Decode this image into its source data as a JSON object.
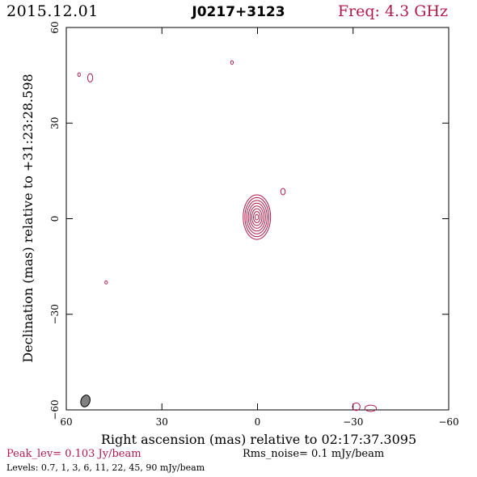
{
  "header": {
    "date": "2015.12.01",
    "source": "J0217+3123",
    "frequency": "Freq: 4.3 GHz"
  },
  "footer": {
    "peak": "Peak_lev=  0.103 Jy/beam",
    "rms": "Rms_noise=  0.1 mJy/beam",
    "levels": "Levels: 0.7,   1,   3,   6,  11,  22,  45,  90 mJy/beam"
  },
  "colors": {
    "contour": "#b01b4a",
    "beam": "#808080",
    "frame": "#000000"
  },
  "chart_data": {
    "type": "contour",
    "xlabel": "Right ascension (mas) relative to 02:17:37.3095",
    "ylabel": "Declination (mas) relative to +31:23:28.598",
    "xlim": [
      60,
      -60
    ],
    "ylim": [
      -60,
      60
    ],
    "xticks": [
      60,
      30,
      0,
      -30,
      -60
    ],
    "yticks": [
      60,
      30,
      0,
      -30,
      -60
    ],
    "contour_levels_mJy": [
      0.7,
      1,
      3,
      6,
      11,
      22,
      45,
      90
    ],
    "components": [
      {
        "x": 0.2,
        "y": 0.5,
        "rx_outer": 4.3,
        "ry_outer": 7.0,
        "levels": 8
      },
      {
        "x": -8.0,
        "y": 8.5,
        "rx_outer": 0.7,
        "ry_outer": 1.0,
        "levels": 1
      },
      {
        "x": 8.0,
        "y": 49.0,
        "rx_outer": 0.4,
        "ry_outer": 0.6,
        "levels": 1
      },
      {
        "x": 52.5,
        "y": 44.2,
        "rx_outer": 0.8,
        "ry_outer": 1.3,
        "levels": 1
      },
      {
        "x": 56.0,
        "y": 45.2,
        "rx_outer": 0.4,
        "ry_outer": 0.6,
        "levels": 1
      },
      {
        "x": 47.5,
        "y": -20.0,
        "rx_outer": 0.4,
        "ry_outer": 0.5,
        "levels": 1
      },
      {
        "x": -31.0,
        "y": -59.0,
        "rx_outer": 1.2,
        "ry_outer": 1.2,
        "levels": 1
      },
      {
        "x": -35.5,
        "y": -59.5,
        "rx_outer": 1.8,
        "ry_outer": 1.0,
        "levels": 1
      }
    ],
    "beam": {
      "x": 54.0,
      "y": -57.2,
      "major": 3.8,
      "minor": 2.8
    }
  }
}
